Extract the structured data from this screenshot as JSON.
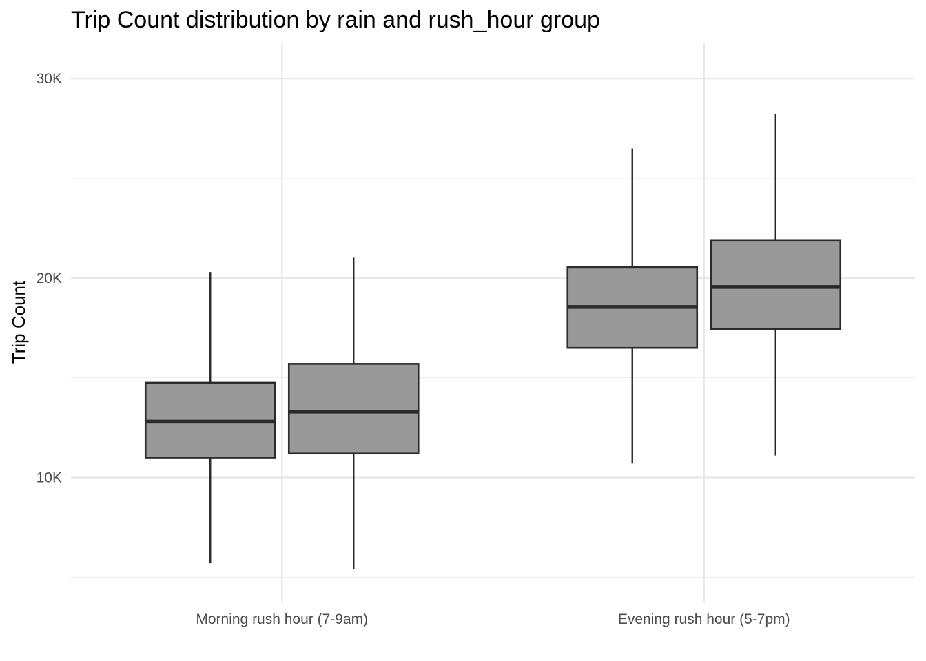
{
  "chart_data": {
    "type": "boxplot",
    "title": "Trip Count distribution by rain and rush_hour group",
    "xlabel": "",
    "ylabel": "Trip Count",
    "categories": [
      "Morning rush hour (7-9am)",
      "Evening rush hour (5-7pm)"
    ],
    "y_ticks": [
      {
        "value": 10000,
        "label": "10K"
      },
      {
        "value": 20000,
        "label": "20K"
      },
      {
        "value": 30000,
        "label": "30K"
      }
    ],
    "y_minor_ticks": [
      5000,
      15000,
      25000
    ],
    "ylim": [
      3700,
      31800
    ],
    "grid": true,
    "fill_color": "#999999",
    "line_color": "#2b2b2b",
    "groups": [
      {
        "category": "Morning rush hour (7-9am)",
        "boxes": [
          {
            "whisker_low": 5700,
            "q1": 11000,
            "median": 12800,
            "q3": 14750,
            "whisker_high": 20300
          },
          {
            "whisker_low": 5400,
            "q1": 11200,
            "median": 13300,
            "q3": 15700,
            "whisker_high": 21050
          }
        ]
      },
      {
        "category": "Evening rush hour (5-7pm)",
        "boxes": [
          {
            "whisker_low": 10700,
            "q1": 16500,
            "median": 18550,
            "q3": 20550,
            "whisker_high": 26500
          },
          {
            "whisker_low": 11100,
            "q1": 17450,
            "median": 19550,
            "q3": 21900,
            "whisker_high": 28250
          }
        ]
      }
    ]
  }
}
